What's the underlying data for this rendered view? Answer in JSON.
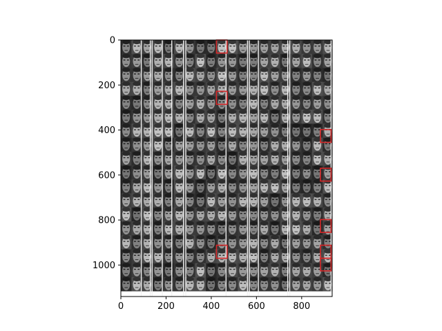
{
  "chart_data": {
    "type": "heatmap",
    "title": "",
    "xlabel": "",
    "ylabel": "",
    "content": "image-montage",
    "grid": false,
    "xlim": [
      0,
      935
    ],
    "ylim": [
      1140,
      0
    ],
    "y_inverted": true,
    "x_ticks": [
      0,
      200,
      400,
      600,
      800
    ],
    "x_tick_labels": [
      "0",
      "200",
      "400",
      "600",
      "800"
    ],
    "y_ticks": [
      0,
      200,
      400,
      600,
      800,
      1000
    ],
    "y_tick_labels": [
      "0",
      "200",
      "400",
      "600",
      "800",
      "1000"
    ],
    "montage": {
      "tile_size": [
        47,
        62
      ],
      "cols": 20,
      "rows": 18,
      "white_separator_columns_x": [
        90,
        130,
        138,
        183,
        225,
        277,
        287,
        465,
        560,
        568,
        608,
        738,
        747,
        930
      ]
    },
    "highlight_boxes": [
      {
        "x": [
          423,
          470
        ],
        "y": [
          0,
          58
        ]
      },
      {
        "x": [
          423,
          470
        ],
        "y": [
          228,
          286
        ]
      },
      {
        "x": [
          883,
          930
        ],
        "y": [
          398,
          455
        ]
      },
      {
        "x": [
          883,
          930
        ],
        "y": [
          570,
          627
        ]
      },
      {
        "x": [
          883,
          930
        ],
        "y": [
          798,
          855
        ]
      },
      {
        "x": [
          423,
          470
        ],
        "y": [
          912,
          970
        ]
      },
      {
        "x": [
          883,
          930
        ],
        "y": [
          912,
          970
        ]
      },
      {
        "x": [
          883,
          930
        ],
        "y": [
          970,
          1026
        ]
      }
    ],
    "colors": {
      "highlight": "#d62728",
      "separator": "#f2f2f2",
      "axis": "#000000",
      "tile_light": "#8a8a8a",
      "tile_dark": "#3c3c3c"
    }
  }
}
